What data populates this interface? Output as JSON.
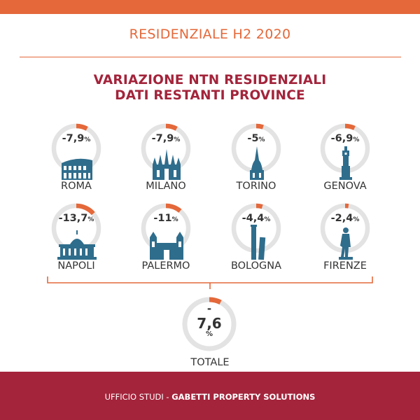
{
  "colors": {
    "orange": "#e4683a",
    "crimson": "#a3243b",
    "ring_track": "#e3e3e3",
    "icon": "#2f6d8c",
    "text_dark": "#333333",
    "footer_bg": "#a3243b"
  },
  "header": {
    "title": "RESIDENZIALE H2 2020"
  },
  "subtitle": {
    "line1": "VARIAZIONE NTN RESIDENZIALI",
    "line2": "DATI RESTANTI PROVINCE"
  },
  "chart_data": {
    "type": "donut-grid",
    "unit": "%",
    "items": [
      {
        "city": "ROMA",
        "display": "-7,9",
        "value": -7.9,
        "icon": "colosseum-icon"
      },
      {
        "city": "MILANO",
        "display": "-7,9",
        "value": -7.9,
        "icon": "duomo-icon"
      },
      {
        "city": "TORINO",
        "display": "-5",
        "value": -5,
        "icon": "mole-antonelliana-icon"
      },
      {
        "city": "GENOVA",
        "display": "-6,9",
        "value": -6.9,
        "icon": "lanterna-icon"
      },
      {
        "city": "NAPOLI",
        "display": "-13,7",
        "value": -13.7,
        "icon": "plebiscito-icon"
      },
      {
        "city": "PALERMO",
        "display": "-11",
        "value": -11,
        "icon": "cathedral-icon"
      },
      {
        "city": "BOLOGNA",
        "display": "-4,4",
        "value": -4.4,
        "icon": "two-towers-icon"
      },
      {
        "city": "FIRENZE",
        "display": "-2,4",
        "value": -2.4,
        "icon": "david-statue-icon"
      }
    ],
    "total": {
      "label": "TOTALE",
      "sign": "-",
      "display": "7,6",
      "value": -7.6,
      "unit": "%"
    }
  },
  "footer": {
    "part1": "UFFICIO STUDI - ",
    "part2": "GABETTI PROPERTY SOLUTIONS"
  }
}
